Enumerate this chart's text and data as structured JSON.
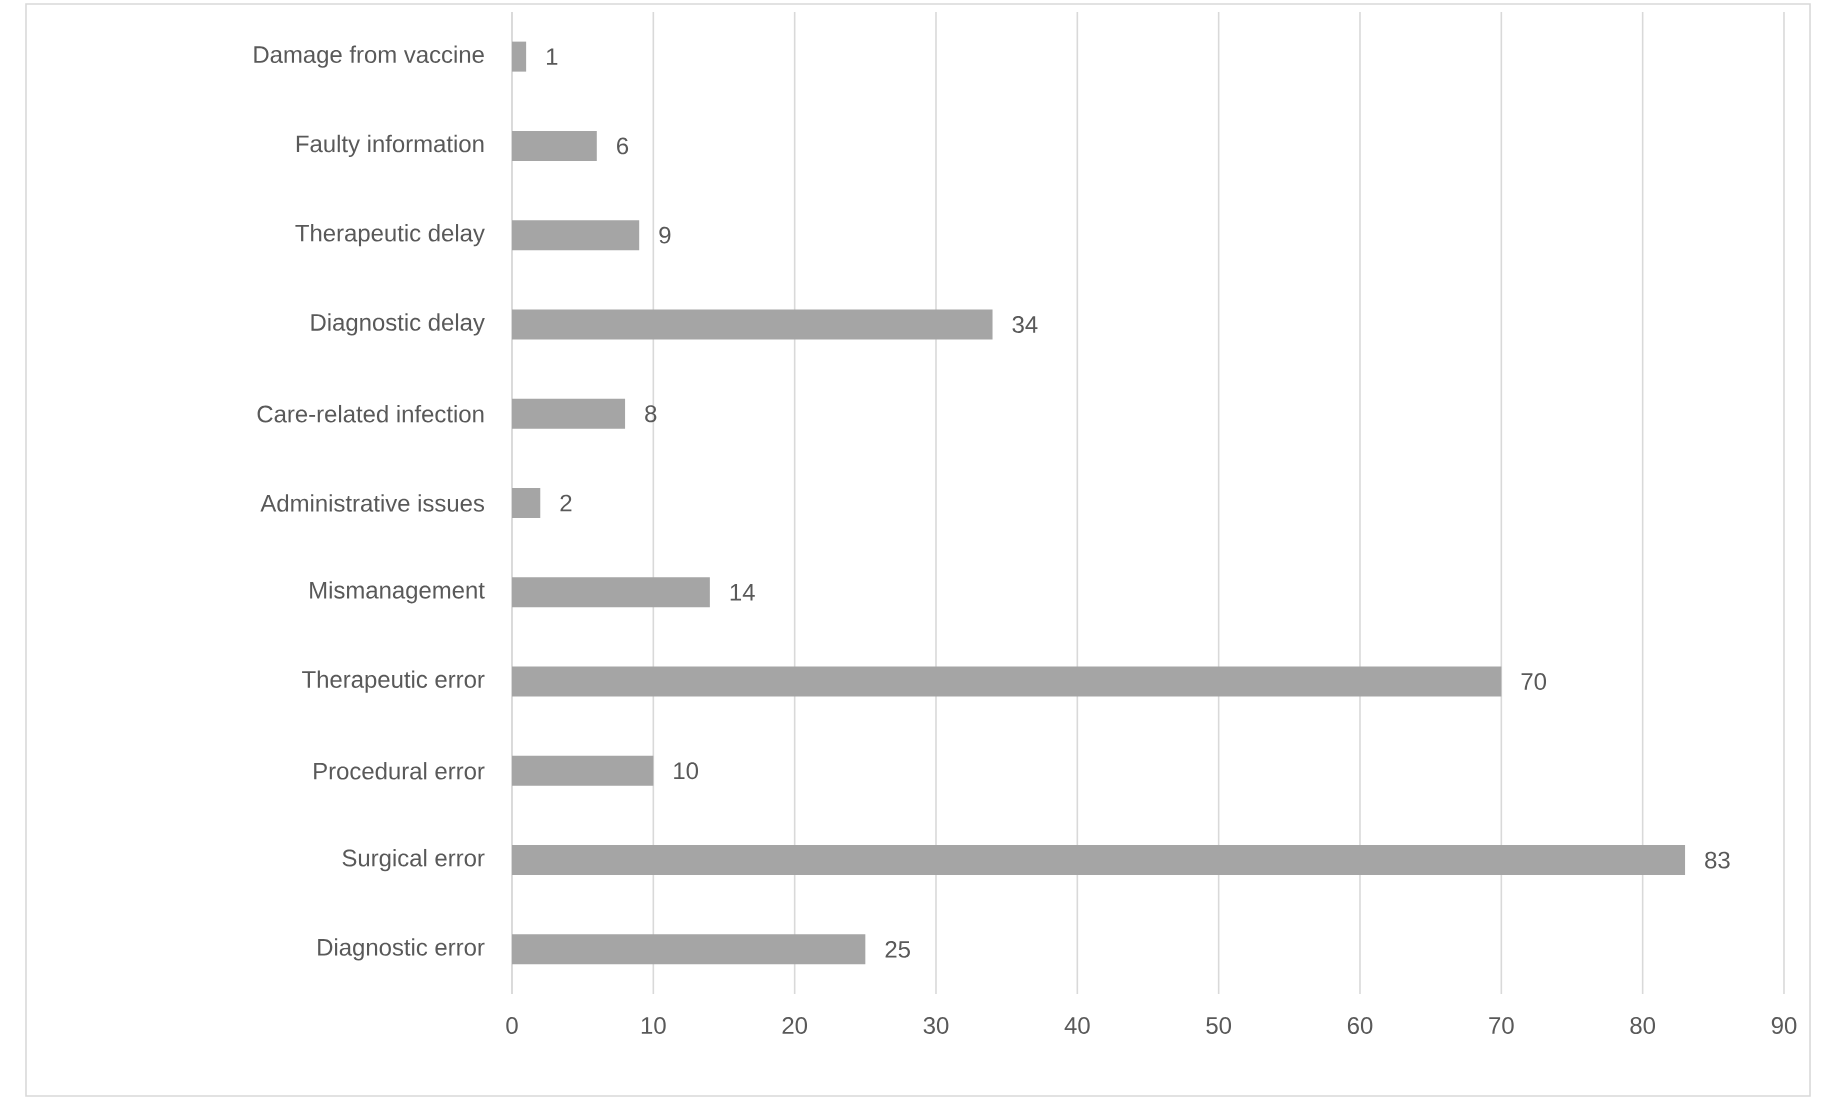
{
  "chart_data": {
    "type": "bar",
    "orientation": "horizontal",
    "categories": [
      "Damage from vaccine",
      "Faulty information",
      "Therapeutic delay",
      "Diagnostic delay",
      "Care-related infection",
      "Administrative issues",
      "Mismanagement",
      "Therapeutic error",
      "Procedural error",
      "Surgical error",
      "Diagnostic error"
    ],
    "values": [
      1,
      6,
      9,
      34,
      8,
      2,
      14,
      70,
      10,
      83,
      25
    ],
    "color": "#a5a5a5",
    "xlim": [
      0,
      90
    ],
    "xticks": [
      0,
      10,
      20,
      30,
      40,
      50,
      60,
      70,
      80,
      90
    ],
    "grid": "x",
    "data_labels": true
  }
}
